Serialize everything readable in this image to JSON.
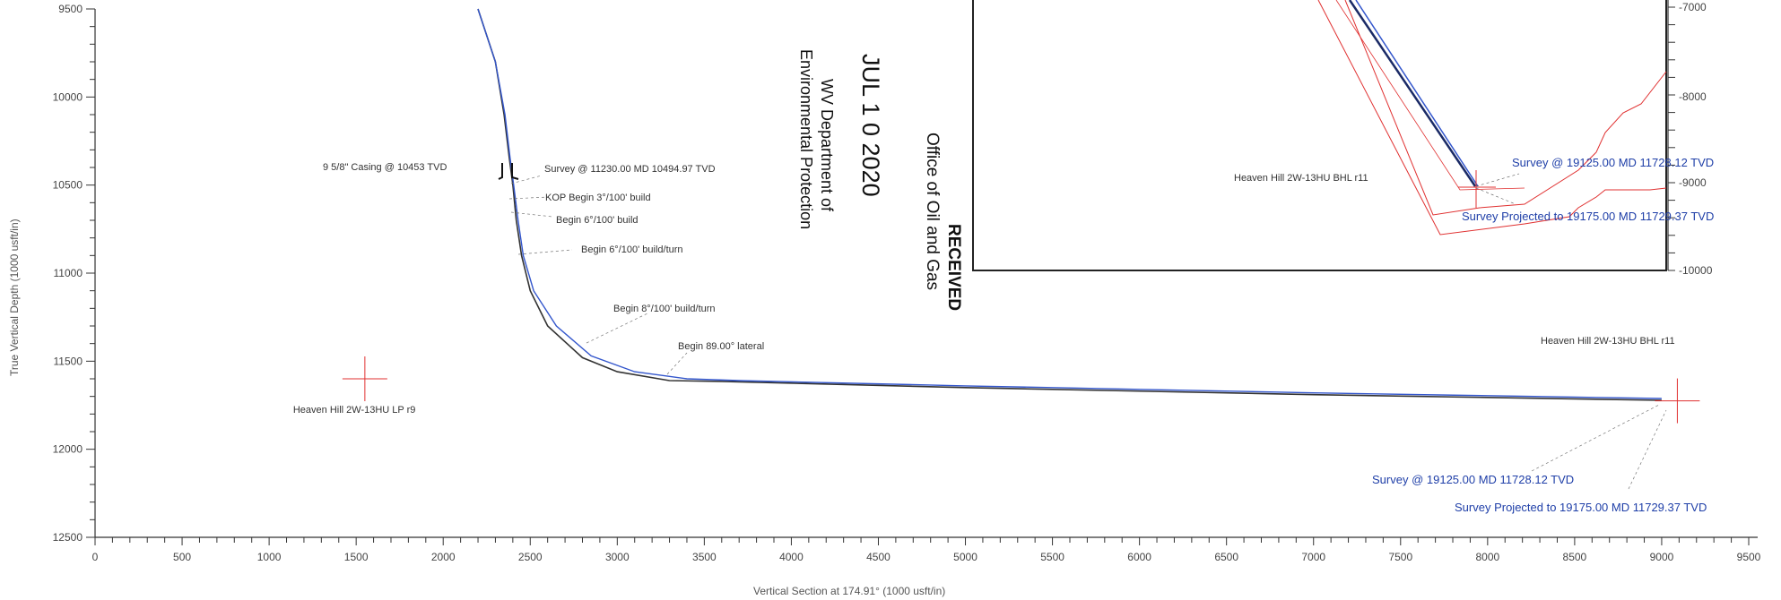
{
  "chart_data": {
    "type": "line",
    "xlabel": "Vertical Section at 174.91° (1000 usft/in)",
    "ylabel": "True Vertical Depth (1000 usft/in)",
    "xlim": [
      0,
      9500
    ],
    "ylim": [
      9500,
      12500
    ],
    "y_inverted": true,
    "x_ticks": [
      "0",
      "500",
      "1000",
      "1500",
      "2000",
      "2500",
      "3000",
      "3500",
      "4000",
      "4500",
      "5000",
      "5500",
      "6000",
      "6500",
      "7000",
      "7500",
      "8000",
      "8500",
      "9000",
      "9500"
    ],
    "y_ticks": [
      "9500",
      "10000",
      "10500",
      "11000",
      "11500",
      "12000",
      "12500"
    ],
    "series": [
      {
        "color": "#333333",
        "x": [
          2200,
          2300,
          2350,
          2380,
          2400,
          2420,
          2450,
          2500,
          2600,
          2800,
          3000,
          3300,
          3600,
          5000,
          7000,
          9000
        ],
        "y": [
          9500,
          9800,
          10100,
          10350,
          10500,
          10700,
          10900,
          11100,
          11300,
          11480,
          11560,
          11610,
          11615,
          11650,
          11690,
          11722
        ]
      },
      {
        "color": "#3356cc",
        "x": [
          2200,
          2300,
          2355,
          2385,
          2405,
          2430,
          2460,
          2520,
          2650,
          2850,
          3100,
          3400,
          3700,
          5000,
          7000,
          9000
        ],
        "y": [
          9500,
          9800,
          10100,
          10350,
          10500,
          10700,
          10900,
          11100,
          11300,
          11470,
          11560,
          11600,
          11610,
          11640,
          11680,
          11712
        ]
      }
    ],
    "targets": [
      {
        "label": "Heaven Hill 2W-13HU LP r9",
        "x": 1550,
        "y": 11600
      },
      {
        "label": "Heaven Hill 2W-13HU BHL r11",
        "x": 9090,
        "y": 11725
      }
    ],
    "annotations": [
      {
        "text": "9 5/8\" Casing @ 10453 TVD"
      },
      {
        "text": "Survey @ 11230.00 MD 10494.97 TVD"
      },
      {
        "text": "KOP Begin 3°/100' build"
      },
      {
        "text": "Begin 6°/100' build"
      },
      {
        "text": "Begin 6°/100' build/turn"
      },
      {
        "text": "Begin 8°/100' build/turn"
      },
      {
        "text": "Begin 89.00° lateral"
      },
      {
        "text": "Heaven Hill 2W-13HU BHL r11"
      },
      {
        "text": "Survey @ 19125.00 MD 11728.12 TVD"
      },
      {
        "text": "Survey Projected to 19175.00 MD 11729.37 TVD"
      }
    ]
  },
  "stamp": {
    "line1": "RECEIVED",
    "line2": "Office of Oil and Gas",
    "date": "JUL 1 0 2020",
    "dept1": "WV Department of",
    "dept2": "Environmental Protection"
  },
  "inset": {
    "right_ticks": [
      "-7000",
      "-8000",
      "-9000",
      "-10000"
    ],
    "bhl_label": "Heaven Hill 2W-13HU BHL r11",
    "survey_label": "Survey @ 19125.00 MD 11728.12 TVD",
    "projected_label": "Survey Projected to 19175.00 MD 11729.37 TVD"
  }
}
